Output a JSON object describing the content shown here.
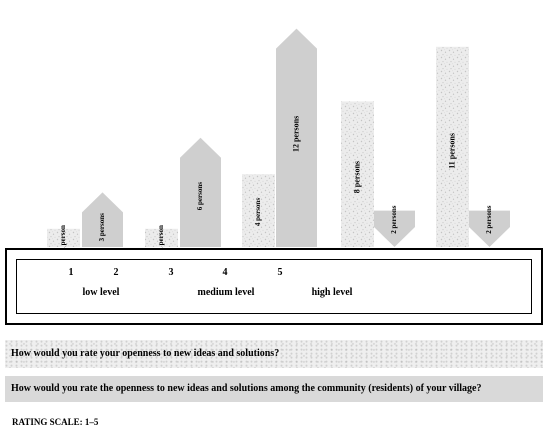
{
  "chart_data": {
    "type": "bar",
    "categories": [
      "1",
      "2",
      "3",
      "4",
      "5"
    ],
    "series": [
      {
        "key": "own",
        "question": "How would you rate your openness to new ideas and solutions?",
        "values": [
          1,
          1,
          4,
          8,
          11
        ],
        "labels": [
          "1 person",
          "1 person",
          "4 persons",
          "8 persons",
          "11 persons"
        ],
        "style": "textured"
      },
      {
        "key": "community",
        "question": "How would you rate the openness to new ideas and solutions among the community (residents) of your village?",
        "values": [
          3,
          6,
          12,
          2,
          2
        ],
        "labels": [
          "3 persons",
          "6 persons",
          "12 persons",
          "2 persons",
          "2 persons"
        ],
        "style": "gray",
        "arrow_direction": [
          "up",
          "up",
          "up",
          "down",
          "down"
        ]
      }
    ],
    "level_labels": [
      "low level",
      "medium level",
      "high level"
    ],
    "rating_scale": "RATING SCALE: 1–5",
    "colors": {
      "gray": "#cfcfcf",
      "textured_base": "#ececec",
      "text": "#000000"
    }
  },
  "questions": {
    "q1": "How would you rate your openness to new ideas and solutions?",
    "q2": "How would you rate the openness to new ideas and solutions among the community (residents) of your village?"
  },
  "scale": {
    "numbers": [
      "1",
      "2",
      "3",
      "4",
      "5"
    ],
    "levels": [
      "low level",
      "medium level",
      "high level"
    ],
    "rating": "RATING SCALE: 1–5"
  }
}
